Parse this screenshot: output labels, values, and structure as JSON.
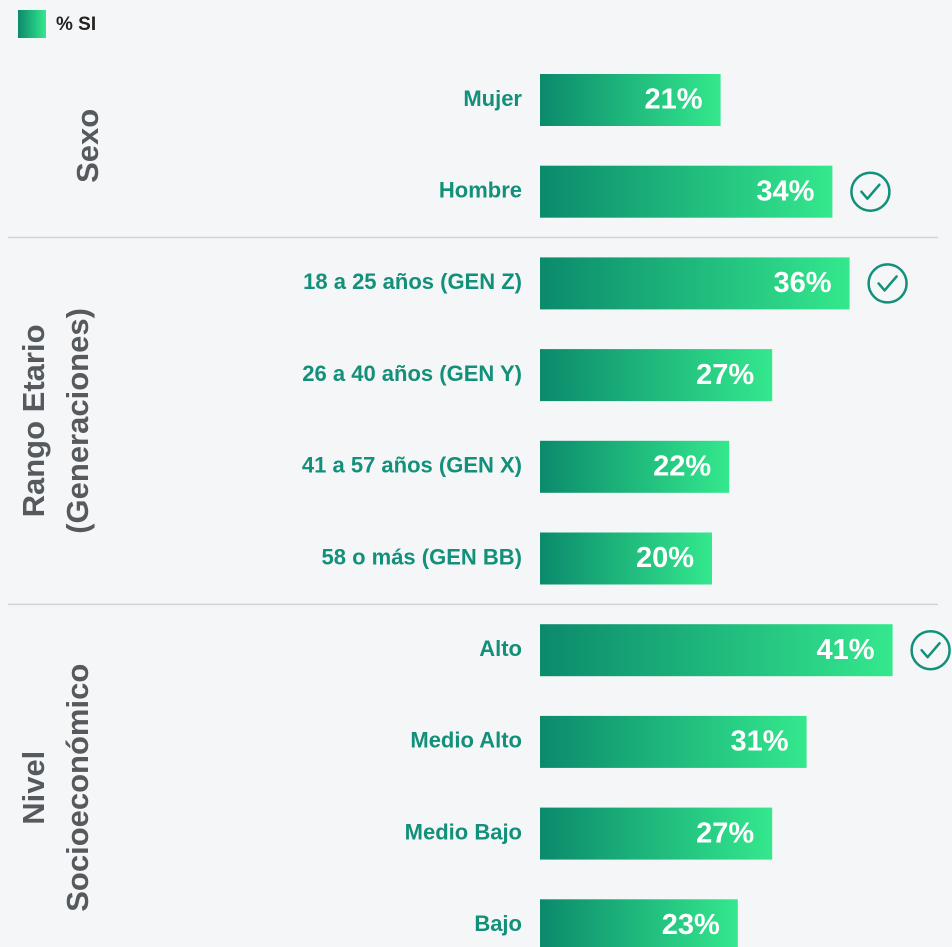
{
  "chart_data": {
    "type": "bar",
    "legend": "% SI",
    "color_start": "#0b8a6c",
    "color_end": "#34e88d",
    "groups": [
      {
        "name": [
          "Sexo"
        ],
        "categories": [
          "Mujer",
          "Hombre"
        ],
        "values": [
          21,
          34
        ],
        "value_labels": [
          "21%",
          "34%"
        ],
        "checked": [
          false,
          true
        ]
      },
      {
        "name": [
          "Rango Etario",
          "(Generaciones)"
        ],
        "categories": [
          "18 a 25 años (GEN Z)",
          "26 a 40 años (GEN Y)",
          "41 a 57 años (GEN X)",
          "58 o más (GEN BB)"
        ],
        "values": [
          36,
          27,
          22,
          20
        ],
        "value_labels": [
          "36%",
          "27%",
          "22%",
          "20%"
        ],
        "checked": [
          true,
          false,
          false,
          false
        ]
      },
      {
        "name": [
          "Nivel",
          "Socioeconómico"
        ],
        "categories": [
          "Alto",
          "Medio Alto",
          "Medio Bajo",
          "Bajo"
        ],
        "values": [
          41,
          31,
          27,
          23
        ],
        "value_labels": [
          "41%",
          "31%",
          "27%",
          "23%"
        ],
        "checked": [
          true,
          false,
          false,
          false
        ]
      }
    ]
  }
}
